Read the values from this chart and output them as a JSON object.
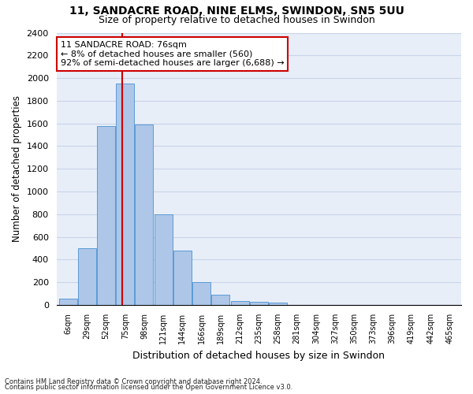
{
  "title1": "11, SANDACRE ROAD, NINE ELMS, SWINDON, SN5 5UU",
  "title2": "Size of property relative to detached houses in Swindon",
  "xlabel": "Distribution of detached houses by size in Swindon",
  "ylabel": "Number of detached properties",
  "footnote1": "Contains HM Land Registry data © Crown copyright and database right 2024.",
  "footnote2": "Contains public sector information licensed under the Open Government Licence v3.0.",
  "bar_labels": [
    "6sqm",
    "29sqm",
    "52sqm",
    "75sqm",
    "98sqm",
    "121sqm",
    "144sqm",
    "166sqm",
    "189sqm",
    "212sqm",
    "235sqm",
    "258sqm",
    "281sqm",
    "304sqm",
    "327sqm",
    "350sqm",
    "373sqm",
    "396sqm",
    "419sqm",
    "442sqm",
    "465sqm"
  ],
  "bar_values": [
    55,
    500,
    1580,
    1950,
    1590,
    800,
    480,
    200,
    90,
    35,
    30,
    20,
    0,
    0,
    0,
    0,
    0,
    0,
    0,
    0,
    0
  ],
  "bar_color": "#aec6e8",
  "bar_edge_color": "#5b9bd5",
  "annotation_box_text": "11 SANDACRE ROAD: 76sqm\n← 8% of detached houses are smaller (560)\n92% of semi-detached houses are larger (6,688) →",
  "annotation_box_color": "#ffffff",
  "annotation_box_edge_color": "#cc0000",
  "vline_color": "#cc0000",
  "vline_x_bin": 2.85,
  "ylim": [
    0,
    2400
  ],
  "yticks": [
    0,
    200,
    400,
    600,
    800,
    1000,
    1200,
    1400,
    1600,
    1800,
    2000,
    2200,
    2400
  ],
  "grid_color": "#c8d4e8",
  "bg_color": "#e8eef8",
  "title1_fontsize": 10,
  "title2_fontsize": 9
}
